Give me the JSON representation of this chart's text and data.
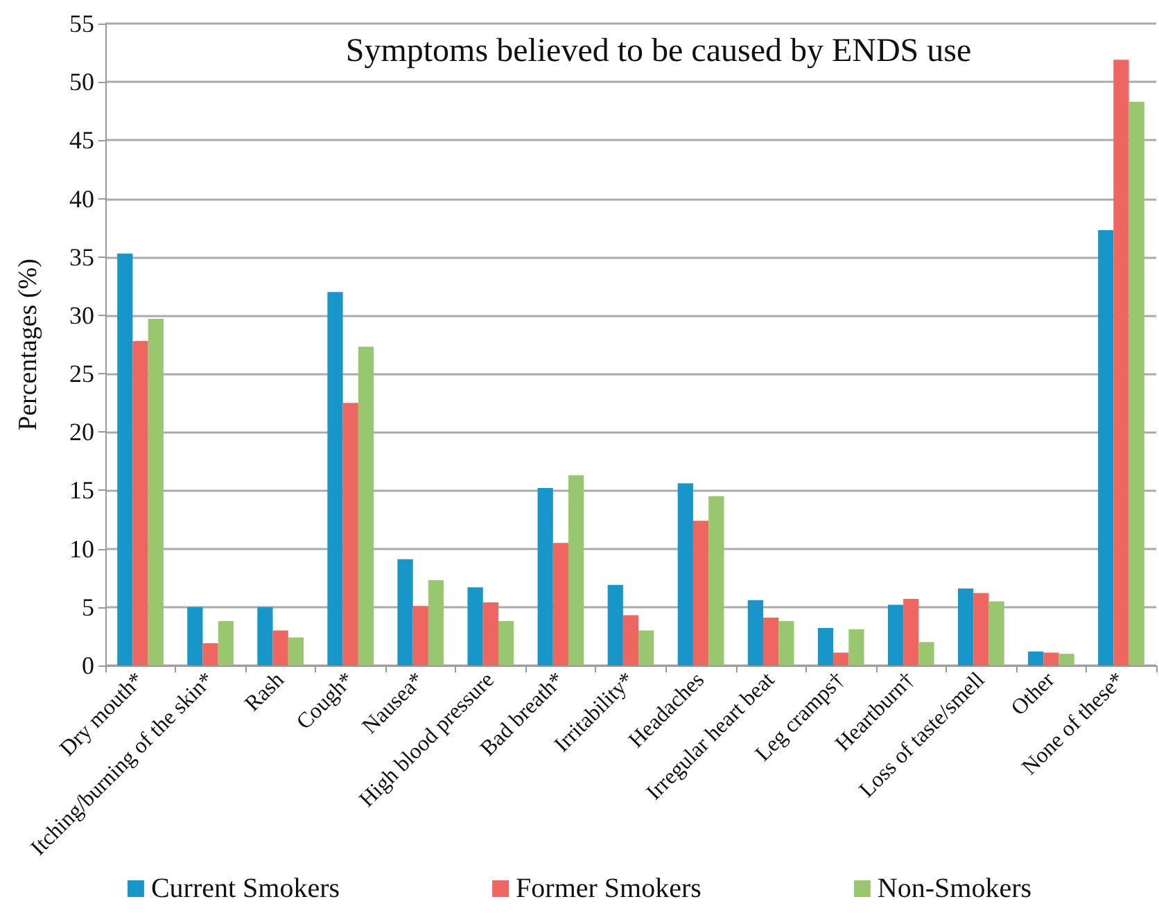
{
  "chart_data": {
    "type": "bar",
    "title": "Symptoms believed to be caused by ENDS use",
    "ylabel": "Percentages (%)",
    "categories": [
      "Dry mouth*",
      "Itching/burning of the skin*",
      "Rash",
      "Cough*",
      "Nausea*",
      "High blood pressure",
      "Bad breath*",
      "Irritability*",
      "Headaches",
      "Irregular heart beat",
      "Leg cramps†",
      "Heartburn†",
      "Loss of taste/smell",
      "Other",
      "None of these*"
    ],
    "series": [
      {
        "name": "Current Smokers",
        "color": "#1797c9",
        "values": [
          35.3,
          5.0,
          5.0,
          32.0,
          9.1,
          6.7,
          15.2,
          6.9,
          15.6,
          5.6,
          3.2,
          5.2,
          6.6,
          1.2,
          37.3
        ]
      },
      {
        "name": "Former Smokers",
        "color": "#ef6660",
        "values": [
          27.8,
          1.9,
          3.0,
          22.5,
          5.1,
          5.4,
          10.5,
          4.3,
          12.4,
          4.1,
          1.1,
          5.7,
          6.2,
          1.1,
          51.9
        ]
      },
      {
        "name": "Non-Smokers",
        "color": "#99c76f",
        "values": [
          29.7,
          3.8,
          2.4,
          27.3,
          7.3,
          3.8,
          16.3,
          3.0,
          14.5,
          3.8,
          3.1,
          2.0,
          5.5,
          1.0,
          48.3
        ]
      }
    ],
    "ylim": [
      0,
      55
    ],
    "yticks": [
      0,
      5,
      10,
      15,
      20,
      25,
      30,
      35,
      40,
      45,
      50,
      55
    ],
    "grid": "y",
    "legend": "bottom"
  }
}
